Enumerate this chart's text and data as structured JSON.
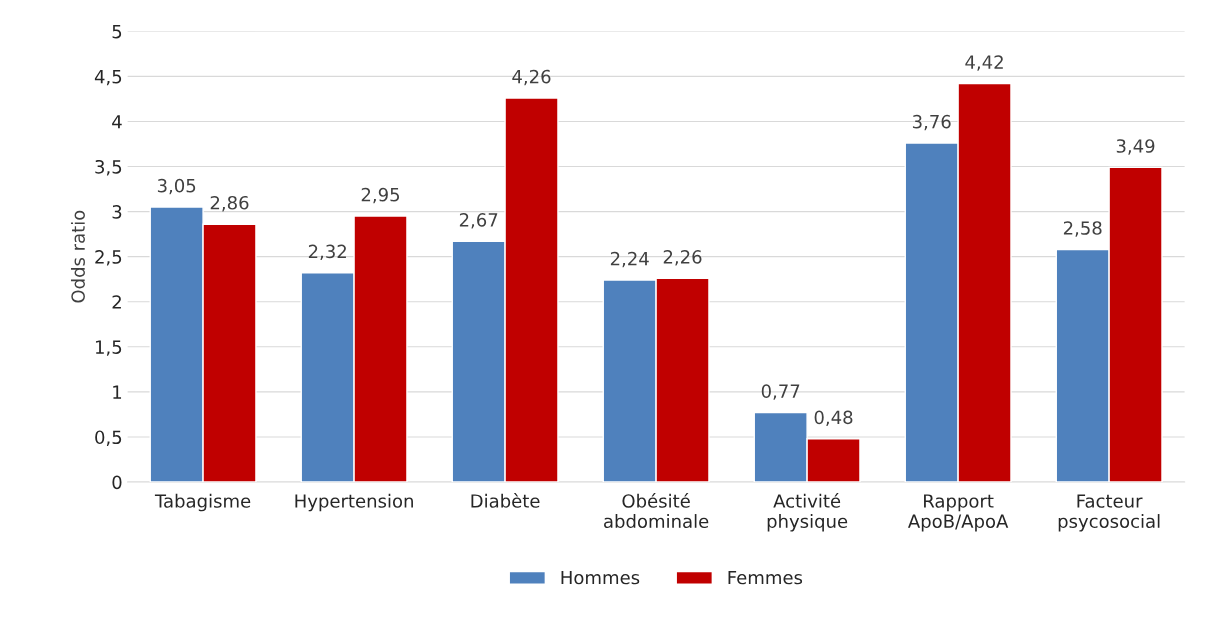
{
  "chart_data": {
    "type": "bar",
    "ylabel": "Odds ratio",
    "categories": [
      "Tabagisme",
      "Hypertension",
      "Diabète",
      "Obésité\nabdominale",
      "Activité\nphysique",
      "Rapport\nApoB/ApoA",
      "Facteur\npsycosocial"
    ],
    "series": [
      {
        "name": "Hommes",
        "color": "#4f81bd",
        "values": [
          3.05,
          2.32,
          2.67,
          2.24,
          0.77,
          3.76,
          2.58
        ],
        "value_labels": [
          "3,05",
          "2,32",
          "2,67",
          "2,24",
          "0,77",
          "3,76",
          "2,58"
        ]
      },
      {
        "name": "Femmes",
        "color": "#c00000",
        "values": [
          2.86,
          2.95,
          4.26,
          2.26,
          0.48,
          4.42,
          3.49
        ],
        "value_labels": [
          "2,86",
          "2,95",
          "4,26",
          "2,26",
          "0,48",
          "4,42",
          "3,49"
        ]
      }
    ],
    "ylim": [
      0,
      5
    ],
    "yticks": [
      0,
      {
        "value": 0.5,
        "label": "0,5"
      },
      1,
      {
        "value": 1.5,
        "label": "1,5"
      },
      2,
      {
        "value": 2.5,
        "label": "2,5"
      },
      3,
      {
        "value": 3.5,
        "label": "3,5"
      },
      4,
      {
        "value": 4.5,
        "label": "4,5"
      },
      5
    ],
    "grid": "y",
    "legend": "bottom"
  }
}
